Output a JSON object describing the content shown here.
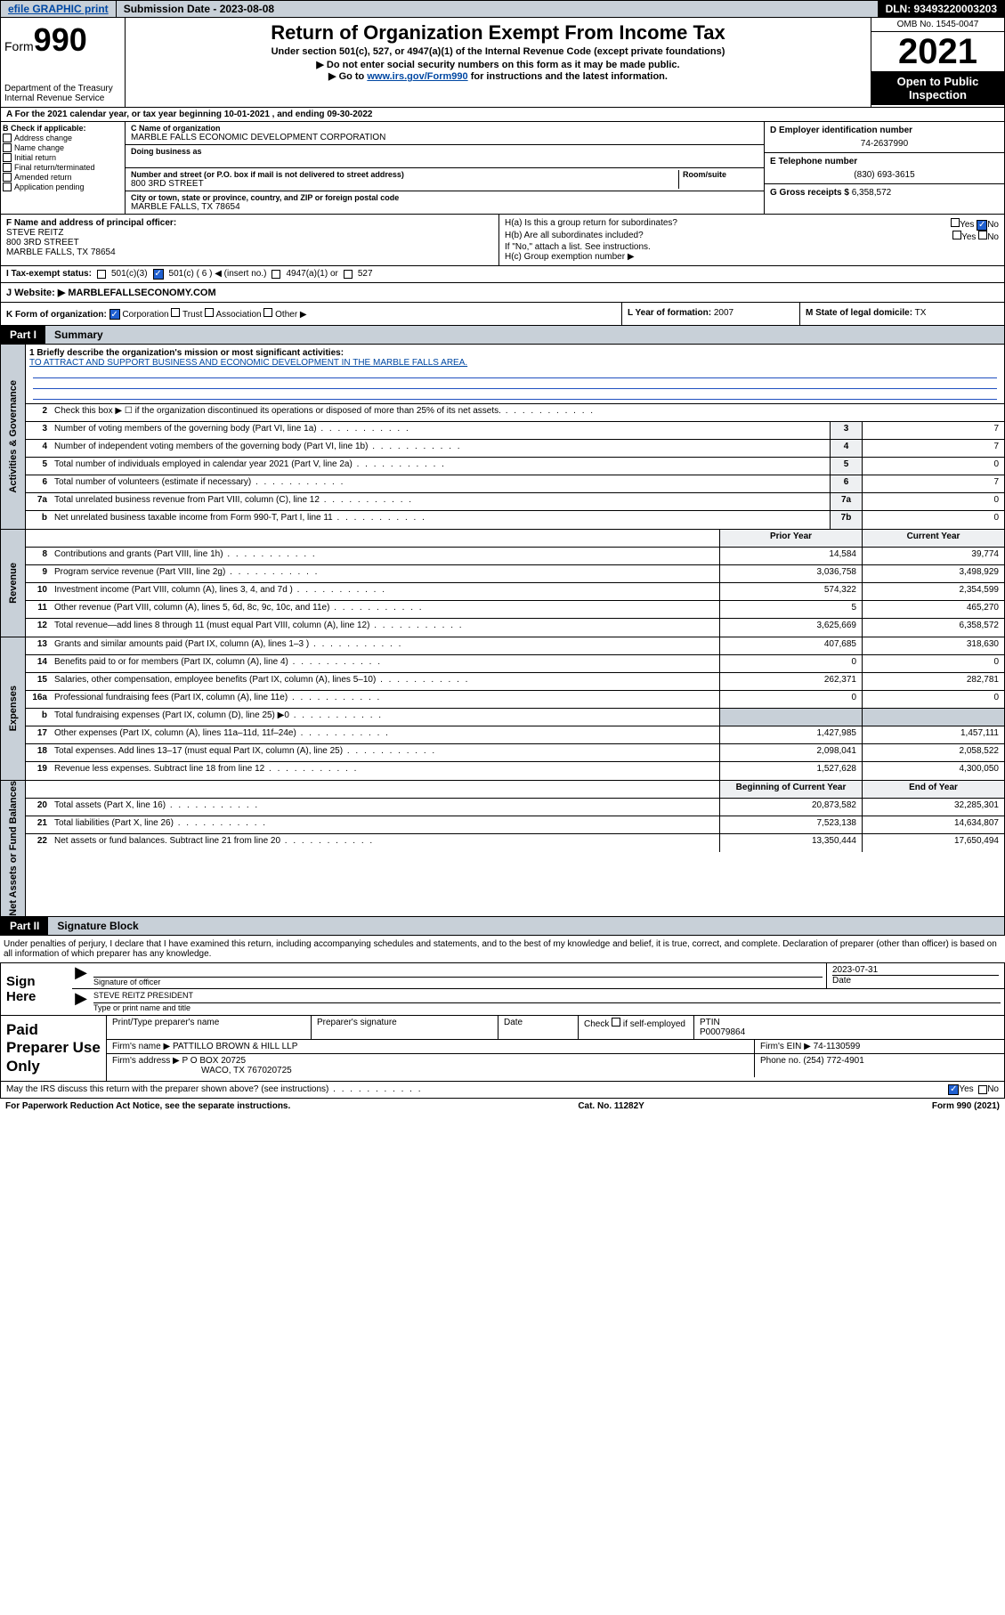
{
  "topbar": {
    "efile": "efile GRAPHIC print",
    "submission": "Submission Date - 2023-08-08",
    "dln": "DLN: 93493220003203"
  },
  "header": {
    "form_prefix": "Form",
    "form_no": "990",
    "dept": "Department of the Treasury Internal Revenue Service",
    "title": "Return of Organization Exempt From Income Tax",
    "subtitle": "Under section 501(c), 527, or 4947(a)(1) of the Internal Revenue Code (except private foundations)",
    "note1": "▶ Do not enter social security numbers on this form as it may be made public.",
    "note2_pre": "▶ Go to ",
    "note2_link": "www.irs.gov/Form990",
    "note2_post": " for instructions and the latest information.",
    "omb": "OMB No. 1545-0047",
    "year": "2021",
    "public": "Open to Public Inspection"
  },
  "period": "A For the 2021 calendar year, or tax year beginning 10-01-2021   , and ending 09-30-2022",
  "checkboxes": {
    "label": "B Check if applicable:",
    "items": [
      "Address change",
      "Name change",
      "Initial return",
      "Final return/terminated",
      "Amended return",
      "Application pending"
    ]
  },
  "org": {
    "name_lbl": "C Name of organization",
    "name": "MARBLE FALLS ECONOMIC DEVELOPMENT CORPORATION",
    "dba_lbl": "Doing business as",
    "addr_lbl": "Number and street (or P.O. box if mail is not delivered to street address)",
    "room_lbl": "Room/suite",
    "addr": "800 3RD STREET",
    "city_lbl": "City or town, state or province, country, and ZIP or foreign postal code",
    "city": "MARBLE FALLS, TX  78654"
  },
  "right": {
    "ein_lbl": "D Employer identification number",
    "ein": "74-2637990",
    "phone_lbl": "E Telephone number",
    "phone": "(830) 693-3615",
    "gross_lbl": "G Gross receipts $",
    "gross": "6,358,572"
  },
  "officer": {
    "lbl": "F  Name and address of principal officer:",
    "name": "STEVE REITZ",
    "addr1": "800 3RD STREET",
    "addr2": "MARBLE FALLS, TX  78654"
  },
  "h": {
    "a": "H(a)  Is this a group return for subordinates?",
    "b": "H(b)  Are all subordinates included?",
    "b_note": "If \"No,\" attach a list. See instructions.",
    "c": "H(c)  Group exemption number ▶",
    "yes": "Yes",
    "no": "No"
  },
  "tax_status": {
    "lbl": "I   Tax-exempt status:",
    "o1": "501(c)(3)",
    "o2": "501(c) ( 6 ) ◀ (insert no.)",
    "o3": "4947(a)(1) or",
    "o4": "527"
  },
  "website": {
    "lbl": "J   Website: ▶",
    "val": "MARBLEFALLSECONOMY.COM"
  },
  "kform": {
    "lbl": "K Form of organization:",
    "corp": "Corporation",
    "trust": "Trust",
    "assoc": "Association",
    "other": "Other ▶",
    "year_lbl": "L Year of formation:",
    "year": "2007",
    "state_lbl": "M State of legal domicile:",
    "state": "TX"
  },
  "part1": {
    "num": "Part I",
    "title": "Summary"
  },
  "mission": {
    "q": "1   Briefly describe the organization's mission or most significant activities:",
    "a": "TO ATTRACT AND SUPPORT BUSINESS AND ECONOMIC DEVELOPMENT IN THE MARBLE FALLS AREA."
  },
  "gov_rows": [
    {
      "n": "2",
      "d": "Check this box ▶ ☐  if the organization discontinued its operations or disposed of more than 25% of its net assets.",
      "box": "",
      "v": ""
    },
    {
      "n": "3",
      "d": "Number of voting members of the governing body (Part VI, line 1a)",
      "box": "3",
      "v": "7"
    },
    {
      "n": "4",
      "d": "Number of independent voting members of the governing body (Part VI, line 1b)",
      "box": "4",
      "v": "7"
    },
    {
      "n": "5",
      "d": "Total number of individuals employed in calendar year 2021 (Part V, line 2a)",
      "box": "5",
      "v": "0"
    },
    {
      "n": "6",
      "d": "Total number of volunteers (estimate if necessary)",
      "box": "6",
      "v": "7"
    },
    {
      "n": "7a",
      "d": "Total unrelated business revenue from Part VIII, column (C), line 12",
      "box": "7a",
      "v": "0"
    },
    {
      "n": "b",
      "d": "Net unrelated business taxable income from Form 990-T, Part I, line 11",
      "box": "7b",
      "v": "0"
    }
  ],
  "rev_hdr": {
    "py": "Prior Year",
    "cy": "Current Year"
  },
  "rev_rows": [
    {
      "n": "8",
      "d": "Contributions and grants (Part VIII, line 1h)",
      "py": "14,584",
      "cy": "39,774"
    },
    {
      "n": "9",
      "d": "Program service revenue (Part VIII, line 2g)",
      "py": "3,036,758",
      "cy": "3,498,929"
    },
    {
      "n": "10",
      "d": "Investment income (Part VIII, column (A), lines 3, 4, and 7d )",
      "py": "574,322",
      "cy": "2,354,599"
    },
    {
      "n": "11",
      "d": "Other revenue (Part VIII, column (A), lines 5, 6d, 8c, 9c, 10c, and 11e)",
      "py": "5",
      "cy": "465,270"
    },
    {
      "n": "12",
      "d": "Total revenue—add lines 8 through 11 (must equal Part VIII, column (A), line 12)",
      "py": "3,625,669",
      "cy": "6,358,572"
    }
  ],
  "exp_rows": [
    {
      "n": "13",
      "d": "Grants and similar amounts paid (Part IX, column (A), lines 1–3 )",
      "py": "407,685",
      "cy": "318,630"
    },
    {
      "n": "14",
      "d": "Benefits paid to or for members (Part IX, column (A), line 4)",
      "py": "0",
      "cy": "0"
    },
    {
      "n": "15",
      "d": "Salaries, other compensation, employee benefits (Part IX, column (A), lines 5–10)",
      "py": "262,371",
      "cy": "282,781"
    },
    {
      "n": "16a",
      "d": "Professional fundraising fees (Part IX, column (A), line 11e)",
      "py": "0",
      "cy": "0"
    },
    {
      "n": "b",
      "d": "Total fundraising expenses (Part IX, column (D), line 25) ▶0",
      "py": "",
      "cy": "",
      "grey": true
    },
    {
      "n": "17",
      "d": "Other expenses (Part IX, column (A), lines 11a–11d, 11f–24e)",
      "py": "1,427,985",
      "cy": "1,457,111"
    },
    {
      "n": "18",
      "d": "Total expenses. Add lines 13–17 (must equal Part IX, column (A), line 25)",
      "py": "2,098,041",
      "cy": "2,058,522"
    },
    {
      "n": "19",
      "d": "Revenue less expenses. Subtract line 18 from line 12",
      "py": "1,527,628",
      "cy": "4,300,050"
    }
  ],
  "na_hdr": {
    "b": "Beginning of Current Year",
    "e": "End of Year"
  },
  "na_rows": [
    {
      "n": "20",
      "d": "Total assets (Part X, line 16)",
      "py": "20,873,582",
      "cy": "32,285,301"
    },
    {
      "n": "21",
      "d": "Total liabilities (Part X, line 26)",
      "py": "7,523,138",
      "cy": "14,634,807"
    },
    {
      "n": "22",
      "d": "Net assets or fund balances. Subtract line 21 from line 20",
      "py": "13,350,444",
      "cy": "17,650,494"
    }
  ],
  "tabs": {
    "gov": "Activities & Governance",
    "rev": "Revenue",
    "exp": "Expenses",
    "na": "Net Assets or Fund Balances"
  },
  "part2": {
    "num": "Part II",
    "title": "Signature Block"
  },
  "sig_intro": "Under penalties of perjury, I declare that I have examined this return, including accompanying schedules and statements, and to the best of my knowledge and belief, it is true, correct, and complete. Declaration of preparer (other than officer) is based on all information of which preparer has any knowledge.",
  "sign": {
    "lbl": "Sign Here",
    "sig_lbl": "Signature of officer",
    "date": "2023-07-31",
    "date_lbl": "Date",
    "name": "STEVE REITZ PRESIDENT",
    "name_lbl": "Type or print name and title"
  },
  "prep": {
    "lbl": "Paid Preparer Use Only",
    "h1": "Print/Type preparer's name",
    "h2": "Preparer's signature",
    "h3": "Date",
    "h4_pre": "Check",
    "h4_post": "if self-employed",
    "h5": "PTIN",
    "ptin": "P00079864",
    "firm_lbl": "Firm's name    ▶",
    "firm": "PATTILLO BROWN & HILL LLP",
    "ein_lbl": "Firm's EIN ▶",
    "ein": "74-1130599",
    "addr_lbl": "Firm's address ▶",
    "addr1": "P O BOX 20725",
    "addr2": "WACO, TX  767020725",
    "phone_lbl": "Phone no.",
    "phone": "(254) 772-4901"
  },
  "footer": {
    "discuss": "May the IRS discuss this return with the preparer shown above? (see instructions)",
    "yes": "Yes",
    "no": "No",
    "notice": "For Paperwork Reduction Act Notice, see the separate instructions.",
    "cat": "Cat. No. 11282Y",
    "form": "Form 990 (2021)"
  }
}
